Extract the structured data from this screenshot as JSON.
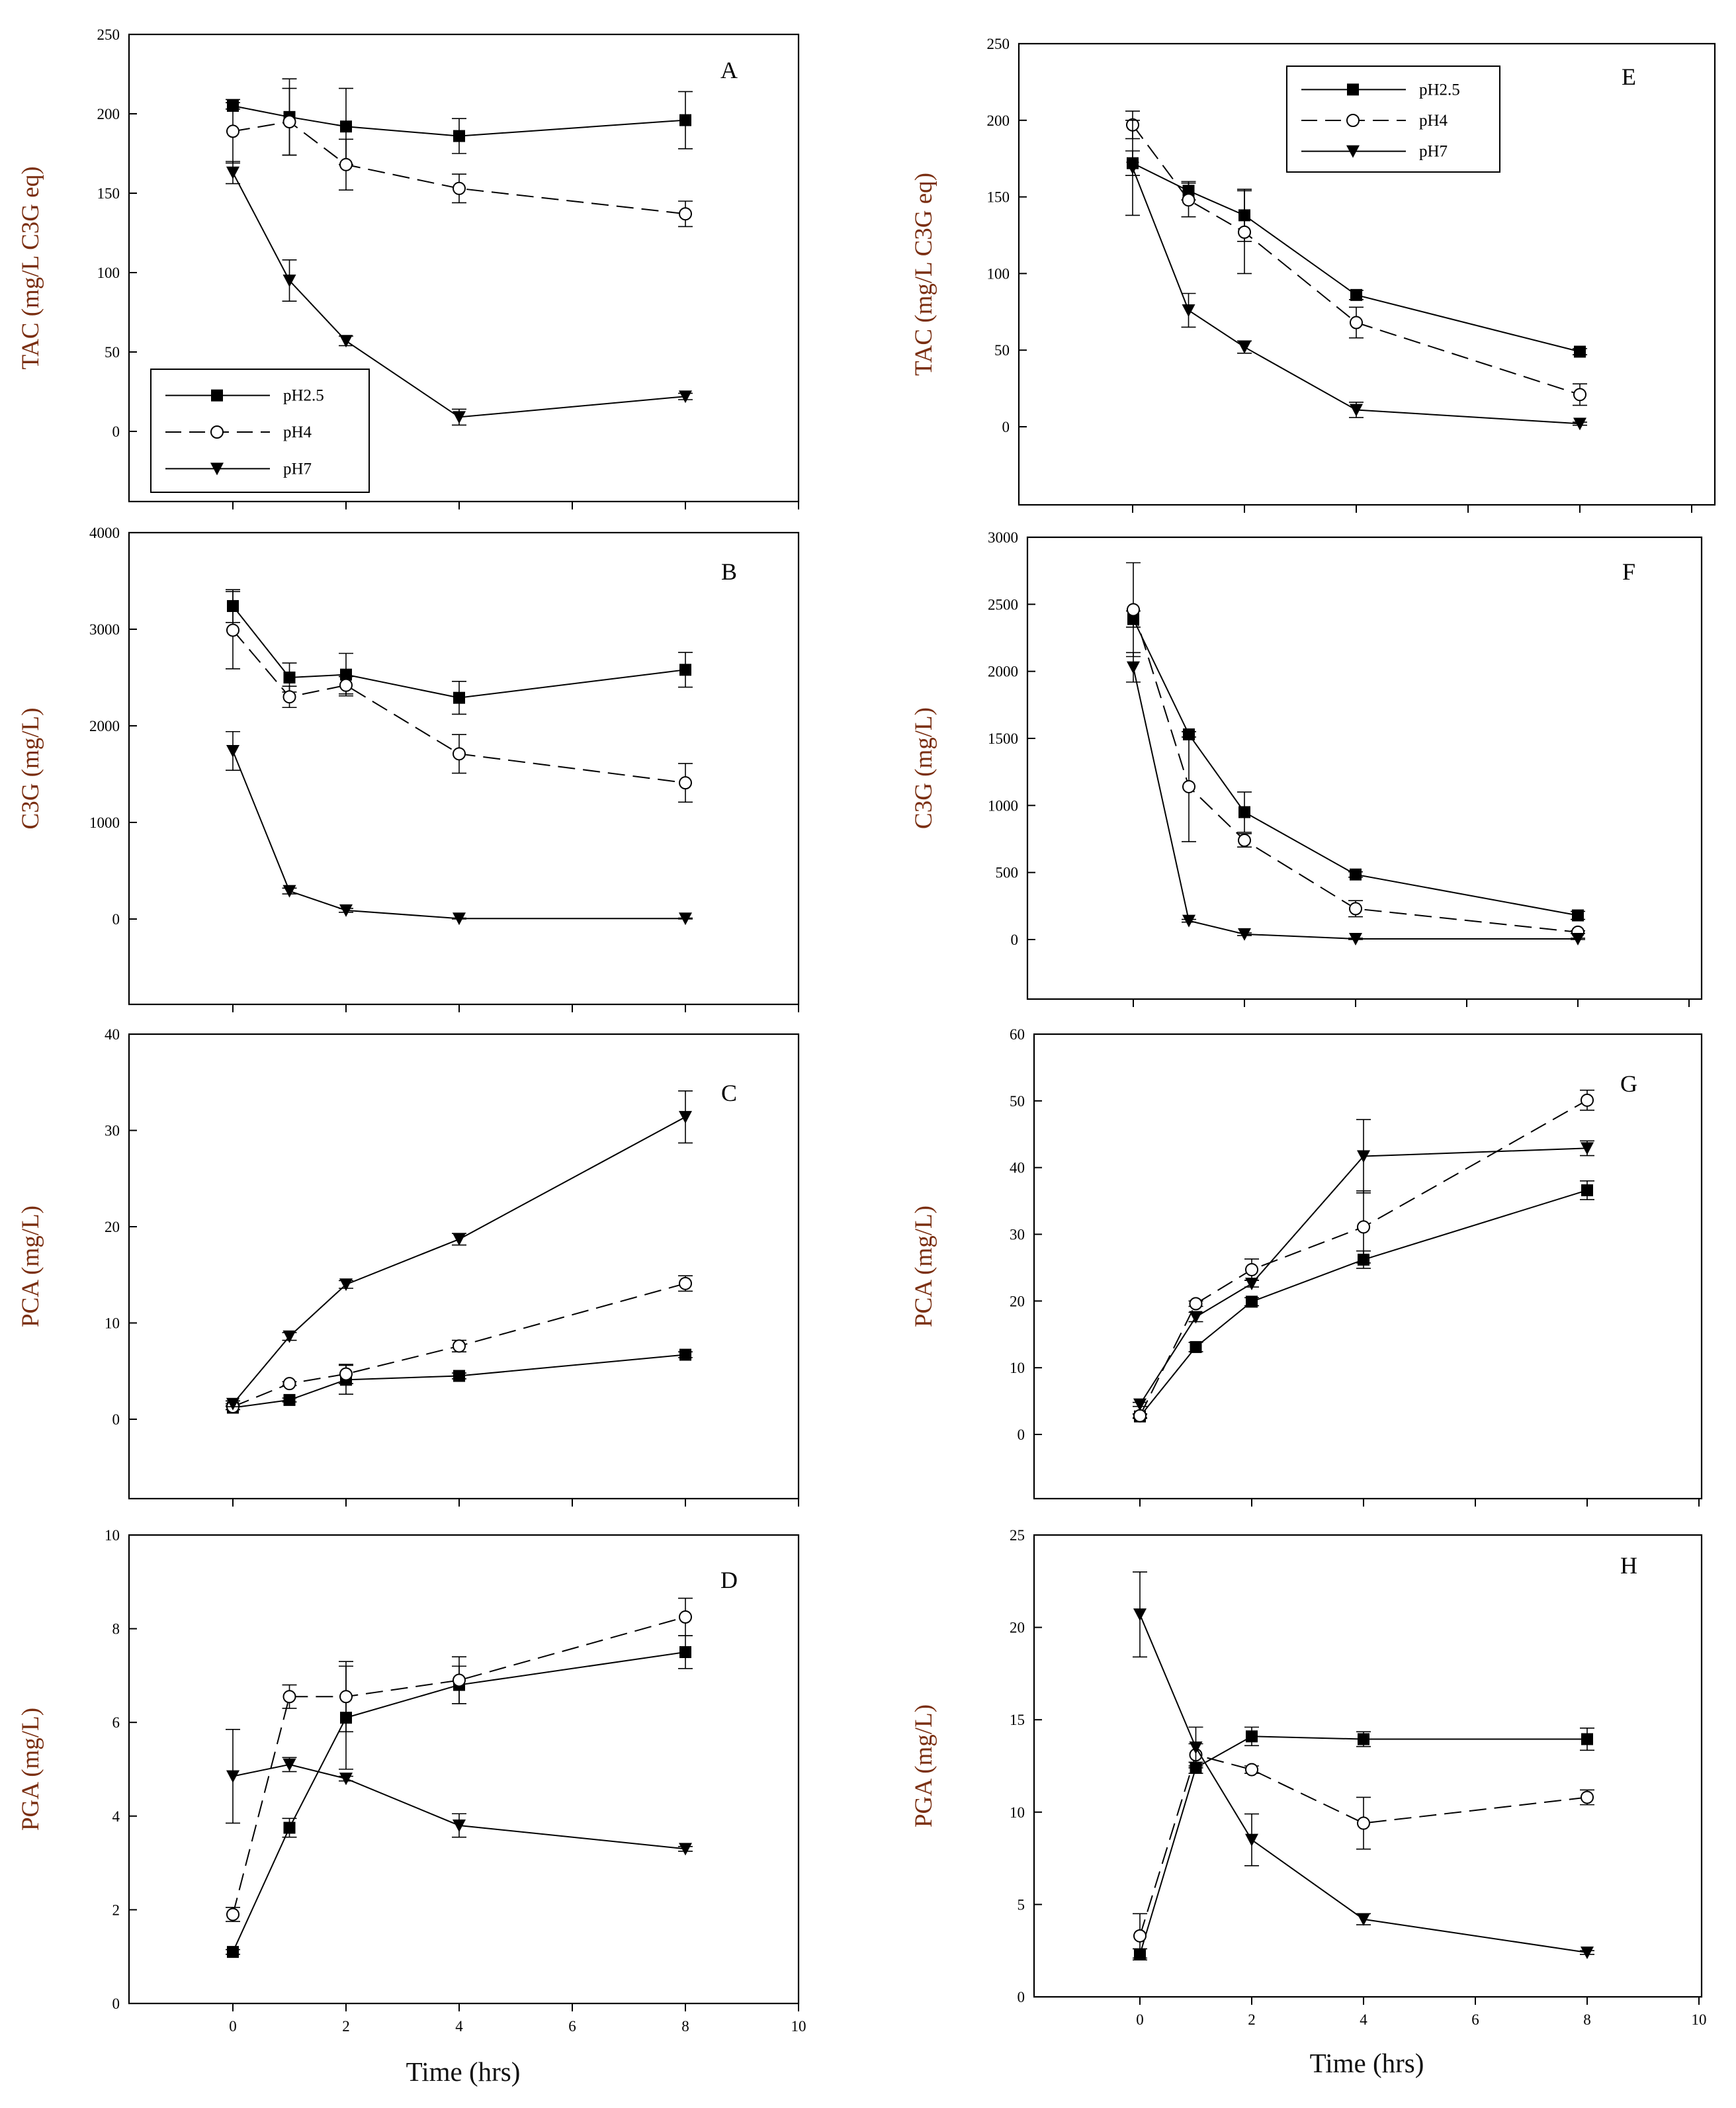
{
  "figure": {
    "xlabel": "Time (hrs)",
    "legend": [
      "pH2.5",
      "pH4",
      "pH7"
    ],
    "series_style": {
      "pH2.5": {
        "marker": "square",
        "line": "solid"
      },
      "pH4": {
        "marker": "circle",
        "line": "dashed"
      },
      "pH7": {
        "marker": "triangle-down",
        "line": "solid"
      }
    },
    "colors": {
      "line": "#000000",
      "axis_label": "#7a2e10",
      "background": "#ffffff"
    }
  },
  "chart_data": [
    {
      "id": "A",
      "type": "line",
      "letter": "A",
      "ylabel": "TAC (mg/L C3G eq)",
      "xlabel": "",
      "xlim": [
        -2,
        10
      ],
      "ylim": [
        -45,
        250
      ],
      "xticks": [
        0,
        2,
        4,
        6,
        8,
        10
      ],
      "yticks": [
        0,
        50,
        100,
        150,
        200,
        250
      ],
      "legend_position": "bottom-left",
      "grid": false,
      "series": [
        {
          "name": "pH2.5",
          "x": [
            0,
            1,
            2,
            4,
            8
          ],
          "y": [
            205,
            198,
            192,
            186,
            196
          ],
          "err": [
            2,
            24,
            24,
            11,
            18
          ]
        },
        {
          "name": "pH4",
          "x": [
            0,
            1,
            2,
            4,
            8
          ],
          "y": [
            189,
            195,
            168,
            153,
            137
          ],
          "err": [
            20,
            21,
            16,
            9,
            8
          ]
        },
        {
          "name": "pH7",
          "x": [
            0,
            1,
            2,
            4,
            8
          ],
          "y": [
            163,
            95,
            57,
            9,
            22
          ],
          "err": [
            7,
            13,
            3,
            5,
            2
          ]
        }
      ]
    },
    {
      "id": "E",
      "type": "line",
      "letter": "E",
      "ylabel": "TAC (mg/L C3G eq)",
      "xlabel": "",
      "xlim": [
        -2,
        10
      ],
      "ylim": [
        -50,
        250
      ],
      "xticks": [
        0,
        2,
        4,
        6,
        8,
        10
      ],
      "yticks": [
        0,
        50,
        100,
        150,
        200,
        250
      ],
      "legend_position": "top-left",
      "grid": false,
      "series": [
        {
          "name": "pH2.5",
          "x": [
            0,
            1,
            2,
            4,
            8
          ],
          "y": [
            172,
            154,
            138,
            86,
            49
          ],
          "err": [
            8,
            6,
            17,
            3,
            2
          ]
        },
        {
          "name": "pH4",
          "x": [
            0,
            1,
            2,
            4,
            8
          ],
          "y": [
            197,
            148,
            127,
            68,
            21
          ],
          "err": [
            9,
            11,
            27,
            10,
            7
          ]
        },
        {
          "name": "pH7",
          "x": [
            0,
            1,
            2,
            4,
            8
          ],
          "y": [
            169,
            76,
            52,
            11,
            2
          ],
          "err": [
            31,
            11,
            4,
            5,
            1
          ]
        }
      ]
    },
    {
      "id": "B",
      "type": "line",
      "letter": "B",
      "ylabel": "C3G (mg/L)",
      "xlabel": "",
      "xlim": [
        -2,
        10
      ],
      "ylim": [
        -900,
        4000
      ],
      "xticks": [
        0,
        2,
        4,
        6,
        8,
        10
      ],
      "yticks": [
        0,
        1000,
        2000,
        3000,
        4000
      ],
      "legend_position": "",
      "grid": false,
      "series": [
        {
          "name": "pH2.5",
          "x": [
            0,
            1,
            2,
            4,
            8
          ],
          "y": [
            3240,
            2500,
            2530,
            2290,
            2580
          ],
          "err": [
            170,
            150,
            220,
            170,
            180
          ]
        },
        {
          "name": "pH4",
          "x": [
            0,
            1,
            2,
            4,
            8
          ],
          "y": [
            2990,
            2300,
            2420,
            1710,
            1410
          ],
          "err": [
            400,
            110,
            90,
            200,
            200
          ]
        },
        {
          "name": "pH7",
          "x": [
            0,
            1,
            2,
            4,
            8
          ],
          "y": [
            1740,
            290,
            90,
            5,
            5
          ],
          "err": [
            200,
            30,
            20,
            5,
            5
          ]
        }
      ]
    },
    {
      "id": "F",
      "type": "line",
      "letter": "F",
      "ylabel": "C3G (mg/L)",
      "xlabel": "",
      "xlim": [
        -2,
        10
      ],
      "ylim": [
        -450,
        3000
      ],
      "xticks": [
        0,
        2,
        4,
        6,
        8,
        10
      ],
      "yticks": [
        0,
        500,
        1000,
        1500,
        2000,
        2500,
        3000
      ],
      "legend_position": "",
      "grid": false,
      "series": [
        {
          "name": "pH2.5",
          "x": [
            0,
            1,
            2,
            4,
            8
          ],
          "y": [
            2390,
            1530,
            950,
            485,
            180
          ],
          "err": [
            60,
            20,
            150,
            20,
            30
          ]
        },
        {
          "name": "pH4",
          "x": [
            0,
            1,
            2,
            4,
            8
          ],
          "y": [
            2460,
            1140,
            740,
            230,
            55
          ],
          "err": [
            350,
            410,
            50,
            60,
            10
          ]
        },
        {
          "name": "pH7",
          "x": [
            0,
            1,
            2,
            4,
            8
          ],
          "y": [
            2030,
            140,
            40,
            5,
            5
          ],
          "err": [
            110,
            10,
            10,
            5,
            5
          ]
        }
      ]
    },
    {
      "id": "C",
      "type": "line",
      "letter": "C",
      "ylabel": "PCA (mg/L)",
      "xlabel": "",
      "xlim": [
        -2,
        10
      ],
      "ylim": [
        -9,
        40
      ],
      "xticks": [
        0,
        2,
        4,
        6,
        8,
        10
      ],
      "yticks": [
        0,
        10,
        20,
        30,
        40
      ],
      "legend_position": "",
      "grid": false,
      "series": [
        {
          "name": "pH2.5",
          "x": [
            0,
            1,
            2,
            4,
            8
          ],
          "y": [
            1.2,
            2.0,
            4.1,
            4.5,
            6.7
          ],
          "err": [
            0.2,
            0.2,
            1.5,
            0.3,
            0.3
          ]
        },
        {
          "name": "pH4",
          "x": [
            0,
            1,
            2,
            4,
            8
          ],
          "y": [
            1.3,
            3.7,
            4.7,
            7.6,
            14.1
          ],
          "err": [
            0.3,
            0.2,
            1.0,
            0.6,
            0.8
          ]
        },
        {
          "name": "pH7",
          "x": [
            0,
            1,
            2,
            4,
            8
          ],
          "y": [
            1.6,
            8.6,
            14.0,
            18.7,
            31.4
          ],
          "err": [
            0.3,
            0.4,
            0.4,
            0.6,
            2.7
          ]
        }
      ]
    },
    {
      "id": "G",
      "type": "line",
      "letter": "G",
      "ylabel": "PCA (mg/L)",
      "xlabel": "",
      "xlim": [
        -2,
        10
      ],
      "ylim": [
        -9,
        60
      ],
      "xticks": [
        0,
        2,
        4,
        6,
        8,
        10
      ],
      "yticks": [
        0,
        10,
        20,
        30,
        40,
        50,
        60
      ],
      "legend_position": "",
      "grid": false,
      "series": [
        {
          "name": "pH2.5",
          "x": [
            0,
            1,
            2,
            4,
            8
          ],
          "y": [
            2.7,
            13.1,
            19.9,
            26.2,
            36.6
          ],
          "err": [
            0.3,
            0.7,
            0.6,
            1.3,
            1.4
          ]
        },
        {
          "name": "pH4",
          "x": [
            0,
            1,
            2,
            4,
            8
          ],
          "y": [
            2.8,
            19.6,
            24.7,
            31.1,
            50.1
          ],
          "err": [
            0.3,
            0.4,
            1.6,
            5.4,
            1.5
          ]
        },
        {
          "name": "pH7",
          "x": [
            0,
            1,
            2,
            4,
            8
          ],
          "y": [
            4.5,
            17.6,
            22.6,
            41.7,
            42.9
          ],
          "err": [
            0.3,
            0.7,
            0.5,
            5.5,
            1.1
          ]
        }
      ]
    },
    {
      "id": "D",
      "type": "line",
      "letter": "D",
      "ylabel": "PGA (mg/L)",
      "xlabel": "",
      "xlim": [
        -2,
        10
      ],
      "ylim": [
        0,
        10
      ],
      "xticks": [
        0,
        2,
        4,
        6,
        8,
        10
      ],
      "yticks": [
        0,
        2,
        4,
        6,
        8,
        10
      ],
      "legend_position": "",
      "grid": false,
      "series": [
        {
          "name": "pH2.5",
          "x": [
            0,
            1,
            2,
            4,
            8
          ],
          "y": [
            1.1,
            3.75,
            6.1,
            6.8,
            7.5
          ],
          "err": [
            0.05,
            0.2,
            1.1,
            0.4,
            0.35
          ]
        },
        {
          "name": "pH4",
          "x": [
            0,
            1,
            2,
            4,
            8
          ],
          "y": [
            1.9,
            6.55,
            6.55,
            6.9,
            8.25
          ],
          "err": [
            0.15,
            0.25,
            0.75,
            0.5,
            0.4
          ]
        },
        {
          "name": "pH7",
          "x": [
            0,
            1,
            2,
            4,
            8
          ],
          "y": [
            4.85,
            5.1,
            4.8,
            3.8,
            3.3
          ],
          "err": [
            1.0,
            0.15,
            0.05,
            0.25,
            0.05
          ]
        }
      ]
    },
    {
      "id": "H",
      "type": "line",
      "letter": "H",
      "ylabel": "PGA (mg/L)",
      "xlabel": "",
      "xlim": [
        -2,
        10
      ],
      "ylim": [
        0,
        25
      ],
      "xticks": [
        0,
        2,
        4,
        6,
        8,
        10
      ],
      "yticks": [
        0,
        5,
        10,
        15,
        20,
        25
      ],
      "legend_position": "",
      "grid": false,
      "series": [
        {
          "name": "pH2.5",
          "x": [
            0,
            1,
            2,
            4,
            8
          ],
          "y": [
            2.3,
            12.4,
            14.1,
            13.95,
            13.95
          ],
          "err": [
            0.3,
            0.3,
            0.5,
            0.4,
            0.6
          ]
        },
        {
          "name": "pH4",
          "x": [
            0,
            1,
            2,
            4,
            8
          ],
          "y": [
            3.3,
            13.1,
            12.3,
            9.4,
            10.8
          ],
          "err": [
            1.2,
            0.6,
            0.2,
            1.4,
            0.4
          ]
        },
        {
          "name": "pH7",
          "x": [
            0,
            1,
            2,
            4,
            8
          ],
          "y": [
            20.7,
            13.5,
            8.5,
            4.2,
            2.4
          ],
          "err": [
            2.3,
            1.1,
            1.4,
            0.3,
            0.1
          ]
        }
      ]
    }
  ]
}
